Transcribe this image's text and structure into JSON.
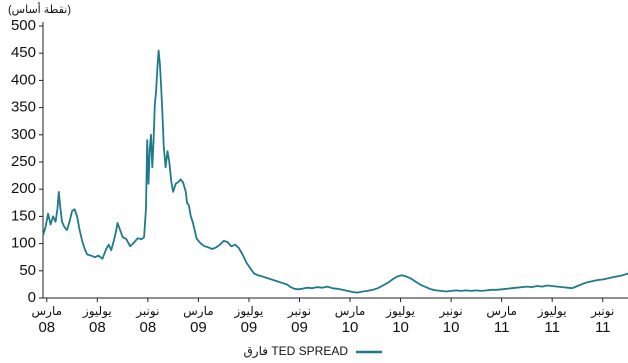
{
  "chart_data": {
    "type": "line",
    "title_fragment": "",
    "unit_label": "(نقطة أساس)",
    "yticks": [
      0,
      50,
      100,
      150,
      200,
      250,
      300,
      350,
      400,
      450,
      500
    ],
    "ylim": [
      0,
      500
    ],
    "x_ticks": [
      {
        "month": "مارس",
        "year": "08",
        "t": 0
      },
      {
        "month": "يوليوز",
        "year": "08",
        "t": 4
      },
      {
        "month": "نونبر",
        "year": "08",
        "t": 8
      },
      {
        "month": "مارس",
        "year": "09",
        "t": 12
      },
      {
        "month": "يوليوز",
        "year": "09",
        "t": 16
      },
      {
        "month": "نونبر",
        "year": "09",
        "t": 20
      },
      {
        "month": "مارس",
        "year": "10",
        "t": 24
      },
      {
        "month": "يوليوز",
        "year": "10",
        "t": 28
      },
      {
        "month": "نونبر",
        "year": "10",
        "t": 32
      },
      {
        "month": "مارس",
        "year": "11",
        "t": 36
      },
      {
        "month": "يوليوز",
        "year": "11",
        "t": 40
      },
      {
        "month": "نونبر",
        "year": "11",
        "t": 44
      }
    ],
    "xlim": [
      -0.3,
      46
    ],
    "legend": {
      "label": "فارق TED SPREAD",
      "color": "#1f7a8c",
      "position": "bottom-center"
    },
    "series": [
      {
        "color": "#1f7a8c",
        "points": [
          [
            -0.3,
            115
          ],
          [
            -0.1,
            130
          ],
          [
            0.1,
            155
          ],
          [
            0.3,
            135
          ],
          [
            0.5,
            150
          ],
          [
            0.7,
            140
          ],
          [
            0.85,
            165
          ],
          [
            0.95,
            195
          ],
          [
            1.05,
            170
          ],
          [
            1.2,
            140
          ],
          [
            1.4,
            130
          ],
          [
            1.6,
            125
          ],
          [
            1.8,
            140
          ],
          [
            2.0,
            160
          ],
          [
            2.2,
            163
          ],
          [
            2.4,
            150
          ],
          [
            2.6,
            125
          ],
          [
            2.8,
            105
          ],
          [
            3.0,
            90
          ],
          [
            3.2,
            80
          ],
          [
            3.5,
            78
          ],
          [
            3.8,
            75
          ],
          [
            4.1,
            78
          ],
          [
            4.4,
            72
          ],
          [
            4.7,
            90
          ],
          [
            4.9,
            98
          ],
          [
            5.1,
            88
          ],
          [
            5.3,
            105
          ],
          [
            5.5,
            125
          ],
          [
            5.6,
            138
          ],
          [
            5.8,
            125
          ],
          [
            6.0,
            112
          ],
          [
            6.3,
            108
          ],
          [
            6.6,
            95
          ],
          [
            6.9,
            102
          ],
          [
            7.2,
            110
          ],
          [
            7.5,
            108
          ],
          [
            7.7,
            112
          ],
          [
            7.85,
            165
          ],
          [
            7.95,
            290
          ],
          [
            8.05,
            210
          ],
          [
            8.15,
            275
          ],
          [
            8.25,
            300
          ],
          [
            8.35,
            240
          ],
          [
            8.45,
            290
          ],
          [
            8.55,
            355
          ],
          [
            8.65,
            380
          ],
          [
            8.75,
            420
          ],
          [
            8.85,
            455
          ],
          [
            8.95,
            430
          ],
          [
            9.05,
            390
          ],
          [
            9.15,
            340
          ],
          [
            9.25,
            280
          ],
          [
            9.4,
            240
          ],
          [
            9.55,
            270
          ],
          [
            9.7,
            250
          ],
          [
            9.85,
            215
          ],
          [
            10.0,
            195
          ],
          [
            10.2,
            210
          ],
          [
            10.4,
            213
          ],
          [
            10.6,
            218
          ],
          [
            10.8,
            212
          ],
          [
            11.0,
            195
          ],
          [
            11.1,
            175
          ],
          [
            11.25,
            170
          ],
          [
            11.4,
            150
          ],
          [
            11.55,
            140
          ],
          [
            11.7,
            125
          ],
          [
            11.85,
            110
          ],
          [
            12.0,
            105
          ],
          [
            12.2,
            100
          ],
          [
            12.5,
            95
          ],
          [
            12.8,
            93
          ],
          [
            13.1,
            90
          ],
          [
            13.4,
            93
          ],
          [
            13.7,
            98
          ],
          [
            14.0,
            105
          ],
          [
            14.3,
            103
          ],
          [
            14.6,
            95
          ],
          [
            14.9,
            98
          ],
          [
            15.2,
            92
          ],
          [
            15.5,
            80
          ],
          [
            15.8,
            65
          ],
          [
            16.1,
            55
          ],
          [
            16.4,
            45
          ],
          [
            16.7,
            42
          ],
          [
            17.0,
            40
          ],
          [
            17.4,
            37
          ],
          [
            17.8,
            34
          ],
          [
            18.2,
            31
          ],
          [
            18.6,
            28
          ],
          [
            19.0,
            25
          ],
          [
            19.3,
            20
          ],
          [
            19.6,
            17
          ],
          [
            19.9,
            16
          ],
          [
            20.2,
            17
          ],
          [
            20.6,
            19
          ],
          [
            21.0,
            18
          ],
          [
            21.4,
            20
          ],
          [
            21.8,
            19
          ],
          [
            22.2,
            21
          ],
          [
            22.6,
            18
          ],
          [
            23.0,
            17
          ],
          [
            23.4,
            15
          ],
          [
            23.8,
            13
          ],
          [
            24.2,
            11
          ],
          [
            24.6,
            10
          ],
          [
            25.0,
            12
          ],
          [
            25.4,
            13
          ],
          [
            25.8,
            15
          ],
          [
            26.2,
            18
          ],
          [
            26.6,
            23
          ],
          [
            27.0,
            28
          ],
          [
            27.4,
            35
          ],
          [
            27.8,
            40
          ],
          [
            28.1,
            42
          ],
          [
            28.4,
            40
          ],
          [
            28.8,
            36
          ],
          [
            29.2,
            30
          ],
          [
            29.6,
            24
          ],
          [
            30.0,
            20
          ],
          [
            30.4,
            16
          ],
          [
            30.8,
            14
          ],
          [
            31.2,
            13
          ],
          [
            31.6,
            12
          ],
          [
            32.0,
            13
          ],
          [
            32.4,
            14
          ],
          [
            32.8,
            13
          ],
          [
            33.2,
            14
          ],
          [
            33.6,
            13
          ],
          [
            34.0,
            14
          ],
          [
            34.4,
            13
          ],
          [
            34.8,
            14
          ],
          [
            35.2,
            15
          ],
          [
            35.6,
            15
          ],
          [
            36.0,
            16
          ],
          [
            36.4,
            17
          ],
          [
            36.8,
            18
          ],
          [
            37.2,
            19
          ],
          [
            37.6,
            20
          ],
          [
            38.0,
            21
          ],
          [
            38.4,
            20
          ],
          [
            38.8,
            22
          ],
          [
            39.2,
            21
          ],
          [
            39.6,
            23
          ],
          [
            40.0,
            22
          ],
          [
            40.4,
            21
          ],
          [
            40.8,
            20
          ],
          [
            41.2,
            19
          ],
          [
            41.6,
            18
          ],
          [
            42.0,
            22
          ],
          [
            42.4,
            26
          ],
          [
            42.8,
            29
          ],
          [
            43.2,
            31
          ],
          [
            43.6,
            33
          ],
          [
            44.0,
            34
          ],
          [
            44.4,
            36
          ],
          [
            44.8,
            38
          ],
          [
            45.2,
            40
          ],
          [
            45.6,
            42
          ],
          [
            46.0,
            45
          ]
        ]
      }
    ]
  }
}
